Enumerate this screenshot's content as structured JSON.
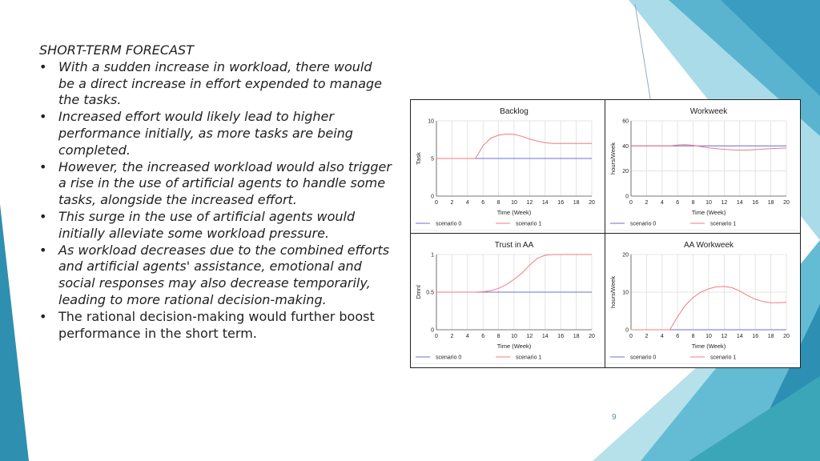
{
  "slide": {
    "heading": "SHORT-TERM FORECAST",
    "bullets": [
      {
        "text": "With a sudden increase in workload, there would be a direct increase in effort expended to manage the tasks.",
        "italic": true
      },
      {
        "text": "Increased effort would likely lead to higher performance initially, as more tasks are being completed.",
        "italic": true
      },
      {
        "text": "However, the increased workload would also trigger a rise in the use of artificial agents to handle some tasks, alongside the increased effort.",
        "italic": true
      },
      {
        "text": "This surge in the use of artificial agents would initially alleviate some workload pressure.",
        "italic": true
      },
      {
        "text": "As workload decreases due to the combined efforts and artificial agents' assistance, emotional and social responses may also decrease temporarily, leading to more rational decision-making.",
        "italic": true
      },
      {
        "text": "The rational decision-making would further boost performance in the short term.",
        "italic": false
      }
    ],
    "bullet_glyph": "•",
    "page_number": "9"
  },
  "colors": {
    "scenario0": "#6f6fd6",
    "scenario1": "#f07d7d",
    "accent_teal": "#3fa9c9",
    "accent_dark": "#2f8fb0",
    "accent_light": "#9fd6e4"
  },
  "chart_data": [
    {
      "type": "line",
      "title": "Backlog",
      "xlabel": "Time (Week)",
      "ylabel": "Task",
      "xlim": [
        0,
        20
      ],
      "ylim": [
        0,
        10
      ],
      "xticks": [
        0,
        2,
        4,
        6,
        8,
        10,
        12,
        14,
        16,
        18,
        20
      ],
      "yticks": [
        0,
        5,
        10
      ],
      "grid": true,
      "legend": "bottom",
      "series": [
        {
          "name": "scenario 0",
          "x": [
            0,
            20
          ],
          "y": [
            5,
            5
          ]
        },
        {
          "name": "scenario 1",
          "x": [
            0,
            5,
            5.5,
            6,
            7,
            8,
            9,
            10,
            11,
            12,
            13,
            14,
            15,
            16,
            18,
            20
          ],
          "y": [
            5,
            5,
            5.8,
            6.7,
            7.7,
            8.1,
            8.25,
            8.2,
            7.95,
            7.6,
            7.3,
            7.1,
            7.0,
            7.0,
            7.0,
            7.0
          ]
        }
      ]
    },
    {
      "type": "line",
      "title": "Workweek",
      "xlabel": "Time (Week)",
      "ylabel": "hours/Week",
      "xlim": [
        0,
        20
      ],
      "ylim": [
        0,
        60
      ],
      "xticks": [
        0,
        2,
        4,
        6,
        8,
        10,
        12,
        14,
        16,
        18,
        20
      ],
      "yticks": [
        0,
        20,
        40,
        60
      ],
      "grid": true,
      "legend": "bottom",
      "series": [
        {
          "name": "scenario 0",
          "x": [
            0,
            20
          ],
          "y": [
            40,
            40
          ]
        },
        {
          "name": "scenario 1",
          "x": [
            0,
            5,
            6,
            7,
            8,
            9,
            10,
            11,
            12,
            13,
            14,
            15,
            16,
            17,
            18,
            19,
            20
          ],
          "y": [
            40,
            40,
            40.8,
            41,
            40.5,
            39.5,
            38.5,
            37.8,
            37.3,
            36.9,
            36.7,
            36.7,
            37,
            37.4,
            37.8,
            38.1,
            38.3
          ]
        }
      ]
    },
    {
      "type": "line",
      "title": "Trust in AA",
      "xlabel": "Time (Week)",
      "ylabel": "Dmnl",
      "xlim": [
        0,
        20
      ],
      "ylim": [
        0,
        1
      ],
      "xticks": [
        0,
        2,
        4,
        6,
        8,
        10,
        12,
        14,
        16,
        18,
        20
      ],
      "yticks": [
        0,
        0.5,
        1
      ],
      "grid": true,
      "legend": "bottom",
      "series": [
        {
          "name": "scenario 0",
          "x": [
            0,
            20
          ],
          "y": [
            0.5,
            0.5
          ]
        },
        {
          "name": "scenario 1",
          "x": [
            0,
            5,
            6,
            7,
            8,
            9,
            10,
            11,
            12,
            13,
            14,
            15,
            16,
            18,
            20
          ],
          "y": [
            0.5,
            0.5,
            0.505,
            0.52,
            0.55,
            0.6,
            0.67,
            0.75,
            0.86,
            0.95,
            0.99,
            1.0,
            1.0,
            1.0,
            1.0
          ]
        }
      ]
    },
    {
      "type": "line",
      "title": "AA Workweek",
      "xlabel": "Time (Week)",
      "ylabel": "hours/Week",
      "xlim": [
        0,
        20
      ],
      "ylim": [
        0,
        20
      ],
      "xticks": [
        0,
        2,
        4,
        6,
        8,
        10,
        12,
        14,
        16,
        18,
        20
      ],
      "yticks": [
        0,
        10,
        20
      ],
      "grid": true,
      "legend": "bottom",
      "series": [
        {
          "name": "scenario 0",
          "x": [
            0,
            20
          ],
          "y": [
            0,
            0
          ]
        },
        {
          "name": "scenario 1",
          "x": [
            0,
            5,
            6,
            7,
            8,
            9,
            10,
            11,
            12,
            13,
            14,
            15,
            16,
            17,
            18,
            19,
            20
          ],
          "y": [
            0,
            0,
            3.5,
            6.5,
            8.6,
            10.0,
            10.9,
            11.4,
            11.5,
            11.2,
            10.3,
            9.1,
            8.1,
            7.5,
            7.2,
            7.2,
            7.3
          ]
        }
      ]
    }
  ]
}
